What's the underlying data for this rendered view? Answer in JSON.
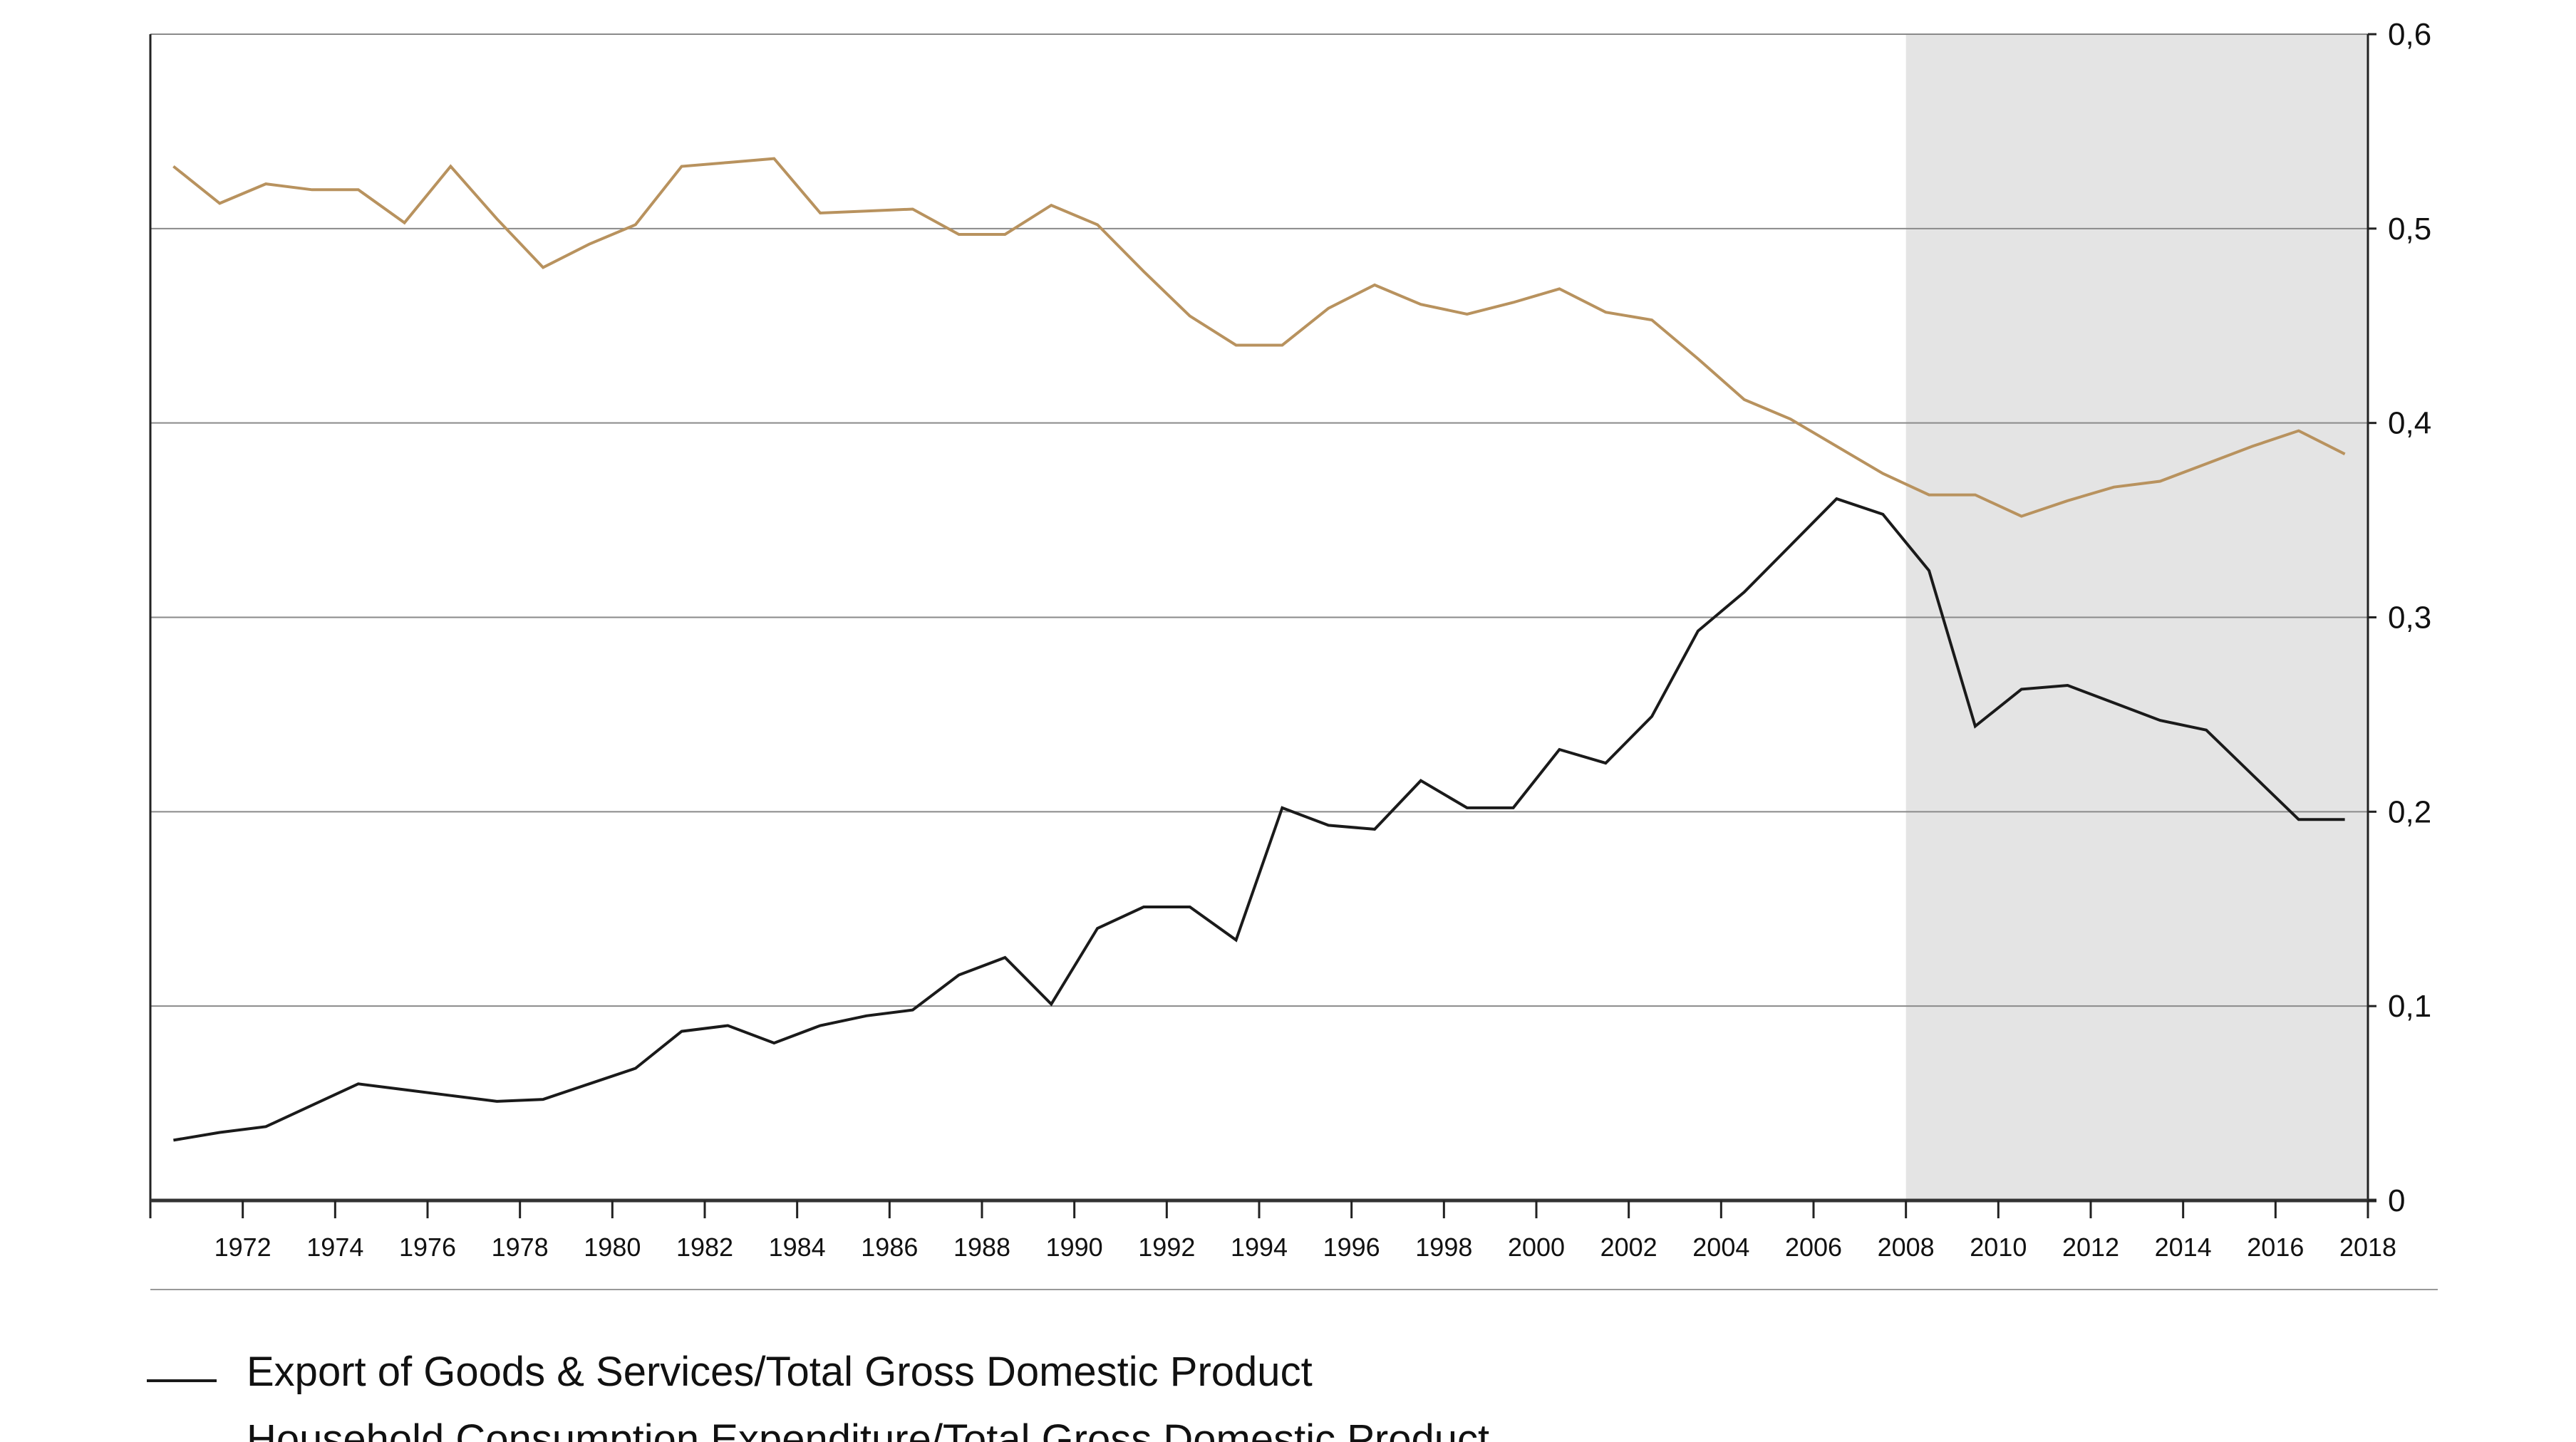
{
  "chart_data": {
    "type": "line",
    "title": "",
    "xlabel": "",
    "ylabel": "",
    "xlim": [
      1970,
      2018
    ],
    "ylim": [
      0,
      0.6
    ],
    "grid": "horizontal",
    "y_axis_side": "right",
    "x_ticks": [
      "1972",
      "1974",
      "1976",
      "1978",
      "1980",
      "1982",
      "1984",
      "1986",
      "1988",
      "1990",
      "1992",
      "1994",
      "1996",
      "1998",
      "2000",
      "2002",
      "2004",
      "2006",
      "2008",
      "2010",
      "2012",
      "2014",
      "2016",
      "2018"
    ],
    "y_ticks": [
      {
        "value": 0,
        "label": "0"
      },
      {
        "value": 0.1,
        "label": "0,1"
      },
      {
        "value": 0.2,
        "label": "0,2"
      },
      {
        "value": 0.3,
        "label": "0,3"
      },
      {
        "value": 0.4,
        "label": "0,4"
      },
      {
        "value": 0.5,
        "label": "0,5"
      },
      {
        "value": 0.6,
        "label": "0,6"
      }
    ],
    "shaded_region": {
      "from": 2008,
      "to": 2018,
      "color": "#e4e4e4"
    },
    "legend_position": "bottom",
    "x": [
      1970.5,
      1971.5,
      1972.5,
      1973.5,
      1974.5,
      1975.5,
      1976.5,
      1977.5,
      1978.5,
      1979.5,
      1980.5,
      1981.5,
      1982.5,
      1983.5,
      1984.5,
      1985.5,
      1986.5,
      1987.5,
      1988.5,
      1989.5,
      1990.5,
      1991.5,
      1992.5,
      1993.5,
      1994.5,
      1995.5,
      1996.5,
      1997.5,
      1998.5,
      1999.5,
      2000.5,
      2001.5,
      2002.5,
      2003.5,
      2004.5,
      2005.5,
      2006.5,
      2007.5,
      2008.5,
      2009.5,
      2010.5,
      2011.5,
      2012.5,
      2013.5,
      2014.5,
      2015.5,
      2016.5,
      2017.5
    ],
    "series": [
      {
        "name": "Export of Goods & Services/Total Gross Domestic Product",
        "color": "#1a1a1a",
        "values": [
          0.031,
          0.035,
          0.038,
          0.049,
          0.06,
          0.057,
          0.054,
          0.051,
          0.052,
          0.06,
          0.068,
          0.087,
          0.09,
          0.081,
          0.09,
          0.095,
          0.098,
          0.116,
          0.125,
          0.101,
          0.14,
          0.151,
          0.151,
          0.134,
          0.202,
          0.193,
          0.191,
          0.216,
          0.202,
          0.202,
          0.232,
          0.225,
          0.249,
          0.293,
          0.313,
          0.337,
          0.361,
          0.353,
          0.324,
          0.244,
          0.263,
          0.265,
          0.256,
          0.247,
          0.242,
          0.219,
          0.196,
          0.196
        ]
      },
      {
        "name": "Household Consumption Expenditure/Total Gross Domestic Product",
        "color": "#b8925e",
        "values": [
          0.532,
          0.513,
          0.523,
          0.52,
          0.52,
          0.503,
          0.532,
          0.505,
          0.48,
          0.492,
          0.502,
          0.532,
          0.534,
          0.536,
          0.508,
          0.509,
          0.51,
          0.497,
          0.497,
          0.512,
          0.502,
          0.478,
          0.455,
          0.44,
          0.44,
          0.459,
          0.471,
          0.461,
          0.456,
          0.462,
          0.469,
          0.457,
          0.453,
          0.433,
          0.412,
          0.402,
          0.388,
          0.374,
          0.363,
          0.363,
          0.352,
          0.36,
          0.367,
          0.37,
          0.379,
          0.388,
          0.396,
          0.384
        ]
      }
    ]
  }
}
